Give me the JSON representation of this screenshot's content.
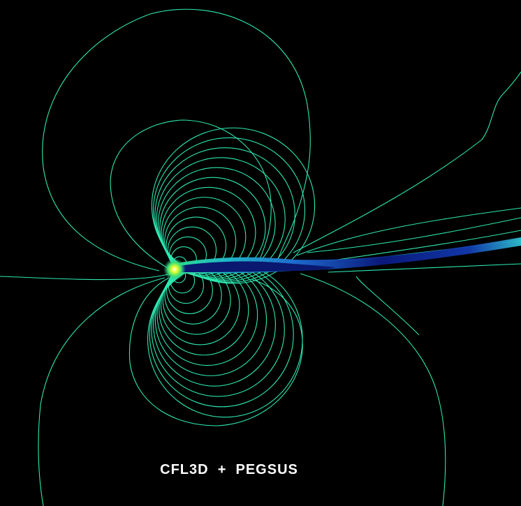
{
  "caption": "CFL3D  +  PEGSUS",
  "colors": {
    "background": "#000000",
    "contour": "#2ee8b0",
    "caption": "#ffffff",
    "wake_dark": "#0a1870",
    "wake_mid": "#1f6fd8",
    "leading_edge_hot": "#e8ff30"
  },
  "description_free": true
}
